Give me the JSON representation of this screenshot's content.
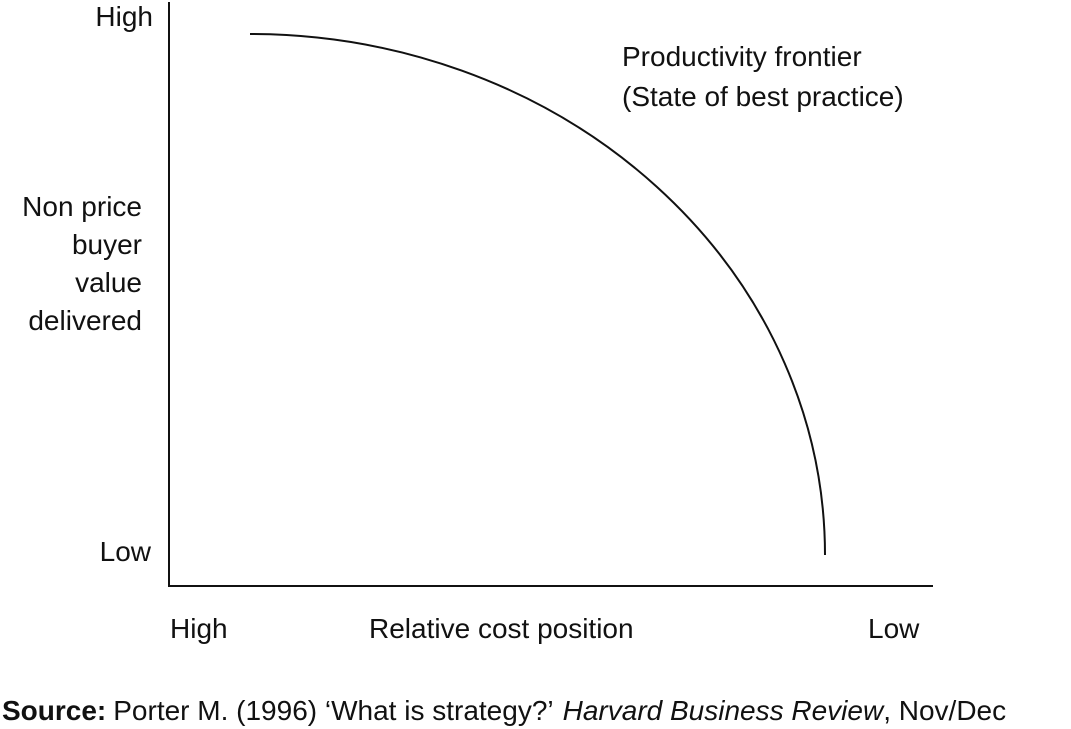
{
  "diagram": {
    "y_axis": {
      "high": "High",
      "low": "Low",
      "label": [
        "Non price",
        "buyer",
        "value",
        "delivered"
      ]
    },
    "x_axis": {
      "high": "High",
      "label": "Relative cost position",
      "low": "Low"
    },
    "annotation": [
      "Productivity frontier",
      "(State of best practice)"
    ]
  },
  "source": {
    "label": "Source:",
    "citation": "Porter M. (1996) ‘What is strategy?’",
    "journal": "Harvard Business Review",
    "details": ", Nov/Dec"
  }
}
